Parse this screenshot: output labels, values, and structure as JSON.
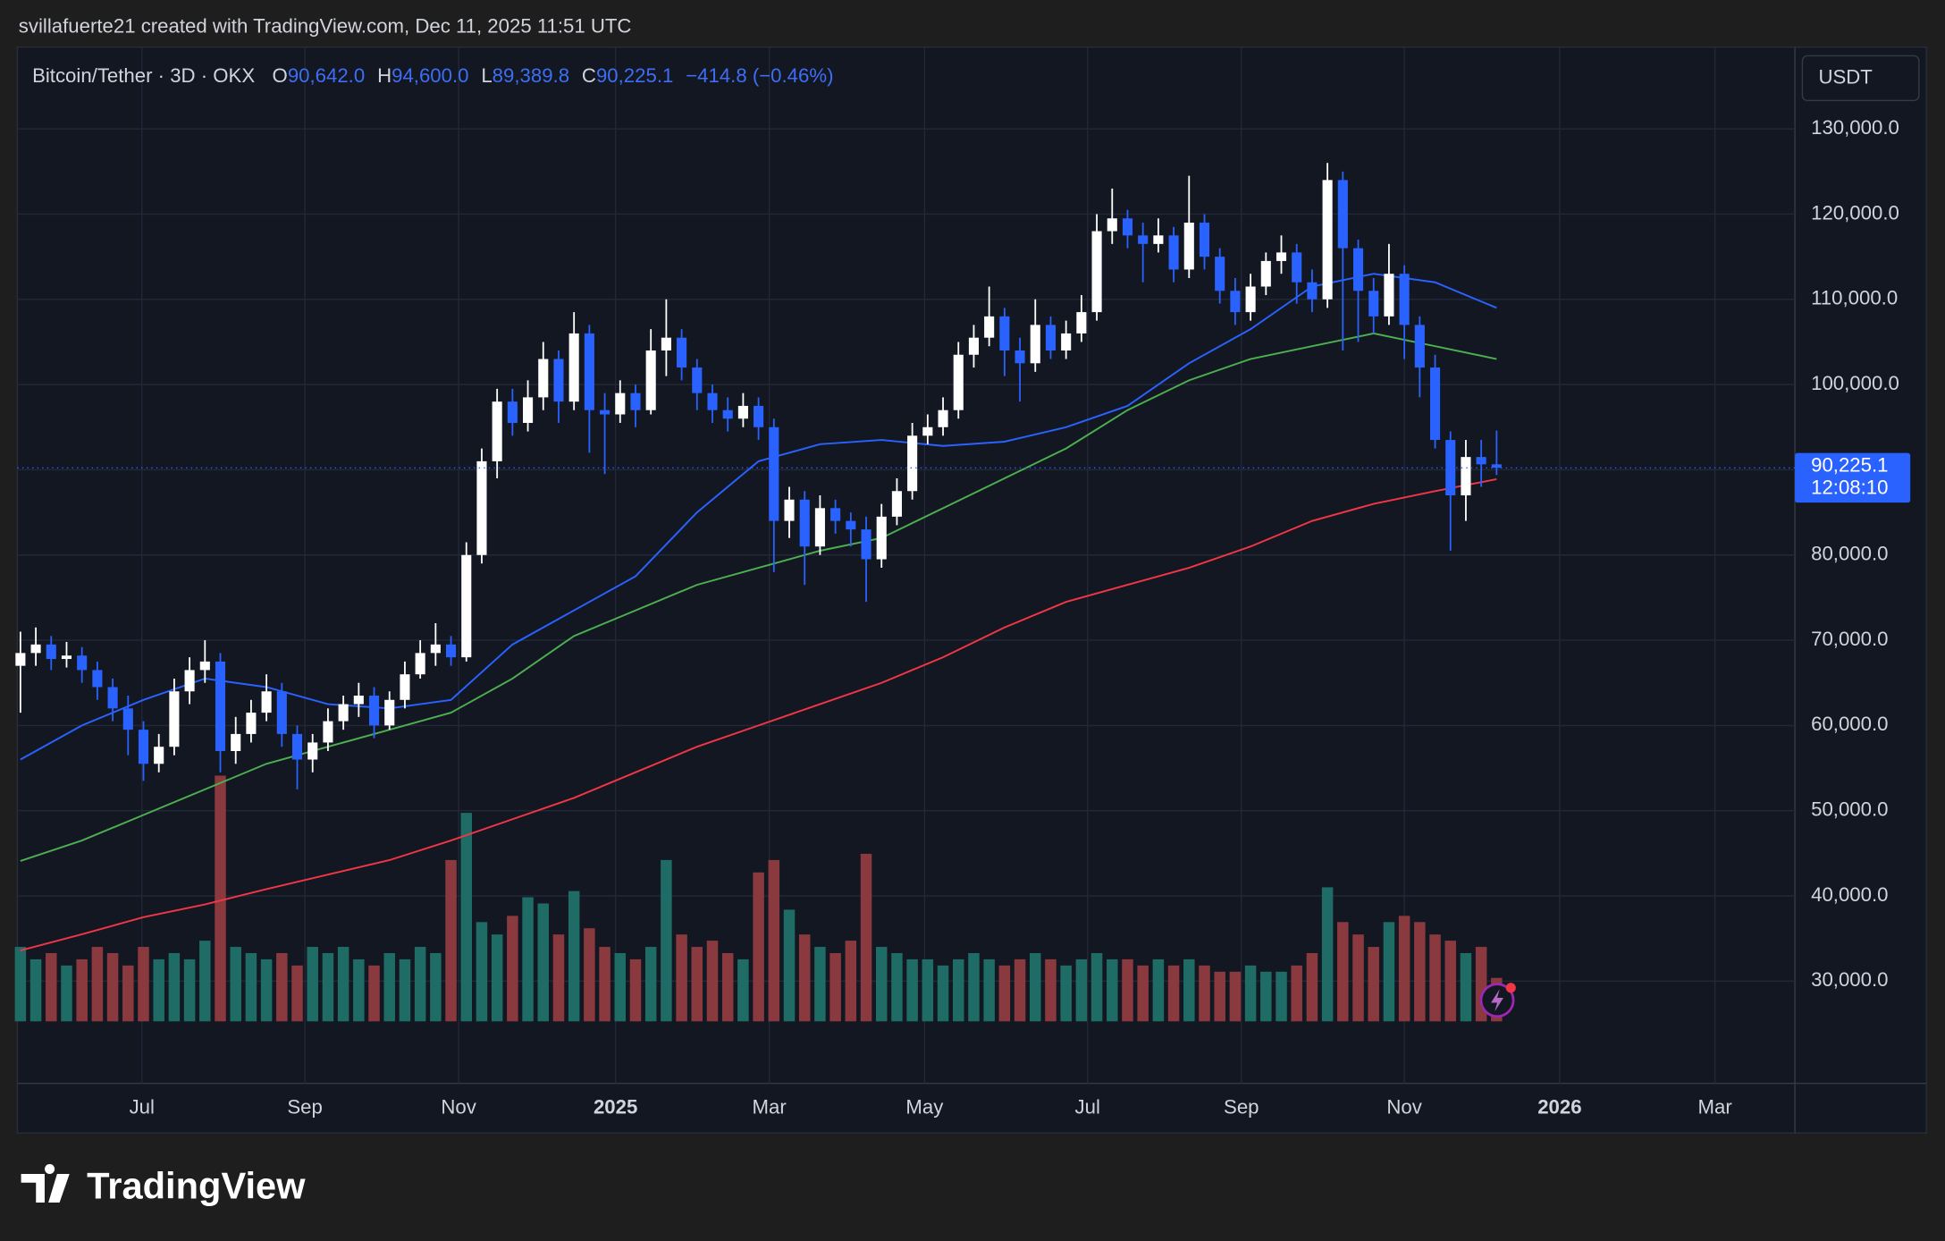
{
  "chart_data": {
    "type": "candlestick",
    "title": "svillafuerte21 created with TradingView.com, Dec 11, 2025 11:51 UTC",
    "symbol": "Bitcoin/Tether · 3D · OKX",
    "ohlc_header": [
      {
        "key": "O",
        "label": "90,642.0"
      },
      {
        "key": "H",
        "label": "94,600.0"
      },
      {
        "key": "L",
        "label": "89,389.8"
      },
      {
        "key": "C",
        "label": "90,225.1"
      }
    ],
    "change_label": "−414.8 (−0.46%)",
    "currency": "USDT",
    "last_price_label": "90,225.1",
    "countdown": "12:08:10",
    "brand": "TradingView",
    "up_color": "#ffffff",
    "down_color": "#2962ff",
    "volume_up_color": "#1f6b66",
    "volume_down_color": "#8a3a3f",
    "open": [
      67000,
      68500,
      69500,
      67800,
      68200,
      66500,
      64500,
      62000,
      59500,
      55500,
      57500,
      64000,
      66500,
      67500,
      57000,
      59000,
      61500,
      64000,
      59000,
      56000,
      58000,
      60500,
      62500,
      63500,
      60000,
      63000,
      66000,
      68500,
      69500,
      68000,
      80000,
      91000,
      98000,
      95500,
      98500,
      103000,
      98000,
      106000,
      97000,
      96500,
      99000,
      97000,
      104000,
      105500,
      102000,
      99000,
      97000,
      96000,
      97500,
      95000,
      84000,
      86500,
      81000,
      85500,
      84000,
      83000,
      79500,
      84500,
      87500,
      94000,
      95000,
      97000,
      103500,
      105500,
      108000,
      104000,
      102500,
      107000,
      104000,
      106000,
      108500,
      118000,
      119500,
      117500,
      116500,
      117500,
      113500,
      119000,
      115000,
      111000,
      108500,
      111500,
      114500,
      115500,
      112000,
      110000,
      124000,
      116000,
      111000,
      108000,
      113000,
      107000,
      102000,
      93500,
      87000,
      91500,
      90642
    ],
    "high": [
      71000,
      71500,
      70500,
      69800,
      69200,
      67500,
      65500,
      63500,
      60500,
      59000,
      65500,
      68000,
      70000,
      68500,
      61000,
      63000,
      66000,
      65000,
      60000,
      59000,
      62000,
      63500,
      65000,
      64500,
      64000,
      67500,
      70000,
      72000,
      70500,
      81500,
      92500,
      99500,
      99500,
      100500,
      105000,
      104000,
      108500,
      107000,
      99000,
      100500,
      100000,
      106500,
      110000,
      106500,
      103000,
      100000,
      98500,
      99000,
      98500,
      96000,
      88000,
      87500,
      87000,
      86500,
      85000,
      84500,
      86000,
      89000,
      95500,
      96500,
      98500,
      105000,
      107000,
      111500,
      109000,
      105500,
      110000,
      108000,
      107500,
      110500,
      120000,
      123000,
      120500,
      119000,
      119500,
      118500,
      124500,
      120000,
      116000,
      112500,
      113000,
      115500,
      117500,
      116500,
      113500,
      126000,
      125000,
      117000,
      112500,
      116500,
      114000,
      108000,
      103500,
      94500,
      93500,
      93500,
      94600
    ],
    "low": [
      61500,
      67000,
      66500,
      66800,
      65000,
      63000,
      60500,
      56500,
      53500,
      54500,
      56500,
      62500,
      65000,
      54500,
      55500,
      58000,
      60500,
      57500,
      52500,
      54500,
      57000,
      59500,
      61000,
      58500,
      59500,
      62000,
      65500,
      67000,
      67000,
      67500,
      79000,
      89000,
      94000,
      94500,
      97000,
      95500,
      97000,
      92000,
      89500,
      95500,
      95000,
      96500,
      101000,
      100500,
      97000,
      95500,
      94500,
      95000,
      93500,
      78000,
      82000,
      76500,
      80000,
      82500,
      81000,
      74500,
      78500,
      83500,
      86500,
      93000,
      94000,
      96000,
      102000,
      104500,
      101000,
      98000,
      101500,
      103000,
      103000,
      105000,
      107500,
      116500,
      116000,
      112000,
      115500,
      112000,
      112500,
      113500,
      109500,
      107000,
      107500,
      110500,
      113000,
      109500,
      108500,
      109000,
      104000,
      105000,
      106000,
      107000,
      103000,
      98500,
      92500,
      80500,
      84000,
      88000,
      89389.8
    ],
    "close": [
      68500,
      69500,
      67800,
      68200,
      66500,
      64500,
      62000,
      59500,
      55500,
      57500,
      64000,
      66500,
      67500,
      57000,
      59000,
      61500,
      64000,
      59000,
      56000,
      58000,
      60500,
      62500,
      63500,
      60000,
      63000,
      66000,
      68500,
      69500,
      68000,
      80000,
      91000,
      98000,
      95500,
      98500,
      103000,
      98000,
      106000,
      97000,
      96500,
      99000,
      97000,
      104000,
      105500,
      102000,
      99000,
      97000,
      96000,
      97500,
      95000,
      84000,
      86500,
      81000,
      85500,
      84000,
      83000,
      79500,
      84500,
      87500,
      94000,
      95000,
      97000,
      103500,
      105500,
      108000,
      104000,
      102500,
      107000,
      104000,
      106000,
      108500,
      118000,
      119500,
      117500,
      116500,
      117500,
      113500,
      119000,
      115000,
      111000,
      108500,
      111500,
      114500,
      115500,
      112000,
      110000,
      124000,
      116000,
      111000,
      108000,
      113000,
      107000,
      102000,
      93500,
      87000,
      91500,
      90640,
      90225.1
    ],
    "volume": [
      60,
      50,
      55,
      45,
      50,
      60,
      55,
      45,
      60,
      50,
      55,
      50,
      65,
      198,
      60,
      55,
      50,
      55,
      45,
      60,
      55,
      60,
      50,
      45,
      55,
      50,
      60,
      55,
      130,
      168,
      80,
      70,
      85,
      100,
      95,
      70,
      105,
      75,
      60,
      55,
      50,
      60,
      130,
      70,
      60,
      65,
      55,
      50,
      120,
      130,
      90,
      70,
      60,
      55,
      65,
      135,
      60,
      55,
      50,
      50,
      45,
      50,
      55,
      50,
      45,
      50,
      55,
      50,
      45,
      50,
      55,
      50,
      50,
      45,
      50,
      45,
      50,
      45,
      40,
      40,
      45,
      40,
      40,
      45,
      55,
      108,
      80,
      70,
      60,
      80,
      85,
      80,
      70,
      65,
      55,
      60,
      35
    ],
    "vlim": [
      0,
      200
    ],
    "moving_averages": [
      {
        "color": "#2962ff",
        "x": [
          0,
          4,
          8,
          12,
          16,
          20,
          24,
          28,
          32,
          36,
          40,
          44,
          48,
          52,
          56,
          60,
          64,
          68,
          72,
          76,
          80,
          84,
          88,
          92,
          96
        ],
        "values": [
          56000,
          60000,
          63000,
          65500,
          64500,
          62500,
          62000,
          63000,
          69500,
          73500,
          77500,
          85000,
          91000,
          93000,
          93500,
          92800,
          93300,
          95000,
          97500,
          102500,
          106500,
          111500,
          113000,
          112000,
          109000
        ]
      },
      {
        "color": "#4caf50",
        "x": [
          0,
          4,
          8,
          12,
          16,
          20,
          24,
          28,
          32,
          36,
          40,
          44,
          48,
          52,
          56,
          60,
          64,
          68,
          72,
          76,
          80,
          84,
          88,
          92,
          96
        ],
        "values": [
          44100,
          46500,
          49500,
          52500,
          55500,
          57500,
          59500,
          61500,
          65500,
          70500,
          73500,
          76500,
          78500,
          80500,
          82000,
          85500,
          89000,
          92500,
          97000,
          100500,
          103000,
          104500,
          106000,
          104500,
          103000
        ]
      },
      {
        "color": "#f23645",
        "x": [
          0,
          4,
          8,
          12,
          16,
          20,
          24,
          28,
          32,
          36,
          40,
          44,
          48,
          52,
          56,
          60,
          64,
          68,
          72,
          76,
          80,
          84,
          88,
          92,
          96
        ],
        "values": [
          33600,
          35500,
          37500,
          39000,
          40800,
          42500,
          44200,
          46500,
          49000,
          51500,
          54500,
          57500,
          60000,
          62500,
          65000,
          68000,
          71500,
          74500,
          76500,
          78500,
          81000,
          84000,
          86000,
          87500,
          88900
        ]
      }
    ],
    "xlim": [
      -0.2,
      115.4
    ],
    "ylim": [
      18000,
      139300
    ],
    "xticks": [
      {
        "value": 7.9,
        "label": "Jul"
      },
      {
        "value": 18.5,
        "label": "Sep"
      },
      {
        "value": 28.5,
        "label": "Nov"
      },
      {
        "value": 38.7,
        "label": "2025"
      },
      {
        "value": 48.7,
        "label": "Mar"
      },
      {
        "value": 58.8,
        "label": "May"
      },
      {
        "value": 69.4,
        "label": "Jul"
      },
      {
        "value": 79.4,
        "label": "Sep"
      },
      {
        "value": 90.0,
        "label": "Nov"
      },
      {
        "value": 100.1,
        "label": "2026"
      },
      {
        "value": 110.2,
        "label": "Mar"
      }
    ],
    "yticks": [
      {
        "value": 30000,
        "label": "30,000.0"
      },
      {
        "value": 40000,
        "label": "40,000.0"
      },
      {
        "value": 50000,
        "label": "50,000.0"
      },
      {
        "value": 60000,
        "label": "60,000.0"
      },
      {
        "value": 70000,
        "label": "70,000.0"
      },
      {
        "value": 80000,
        "label": "80,000.0"
      },
      {
        "value": 90000,
        "label": "90,000.0"
      },
      {
        "value": 100000,
        "label": "100,000.0"
      },
      {
        "value": 110000,
        "label": "110,000.0"
      },
      {
        "value": 120000,
        "label": "120,000.0"
      },
      {
        "value": 130000,
        "label": "130,000.0"
      }
    ],
    "grid": true
  }
}
